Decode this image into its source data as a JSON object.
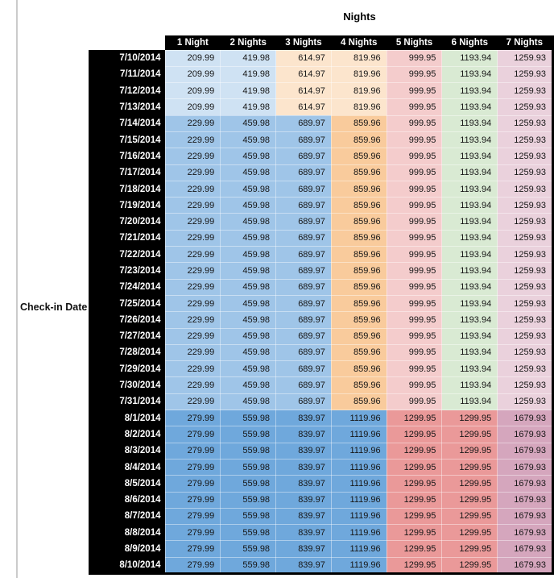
{
  "title": "Nights",
  "row_axis_label": "Check-in Date",
  "columns": [
    "1 Night",
    "2 Nights",
    "3 Nights",
    "4 Nights",
    "5 Nights",
    "6 Nights",
    "7 Nights"
  ],
  "header_colors": {
    "background": "#000000",
    "text": "#ffffff"
  },
  "sections": [
    {
      "name": "early-july-rate",
      "dates": [
        "7/10/2014",
        "7/11/2014",
        "7/12/2014",
        "7/13/2014"
      ],
      "values": [
        "209.99",
        "419.98",
        "614.97",
        "819.96",
        "999.95",
        "1193.94",
        "1259.93"
      ],
      "cell_colors": [
        "#cfe2f3",
        "#cfe2f3",
        "#fce5cd",
        "#fce5cd",
        "#f4cccc",
        "#d9ead3",
        "#ead1dc"
      ]
    },
    {
      "name": "mid-july-rate",
      "dates": [
        "7/14/2014",
        "7/15/2014",
        "7/16/2014",
        "7/17/2014",
        "7/18/2014",
        "7/19/2014",
        "7/20/2014",
        "7/21/2014",
        "7/22/2014",
        "7/23/2014",
        "7/24/2014",
        "7/25/2014",
        "7/26/2014",
        "7/27/2014",
        "7/28/2014",
        "7/29/2014",
        "7/30/2014",
        "7/31/2014"
      ],
      "values": [
        "229.99",
        "459.98",
        "689.97",
        "859.96",
        "999.95",
        "1193.94",
        "1259.93"
      ],
      "cell_colors": [
        "#9fc5e8",
        "#9fc5e8",
        "#9fc5e8",
        "#f9cb9c",
        "#f4cccc",
        "#d9ead3",
        "#ead1dc"
      ]
    },
    {
      "name": "august-rate",
      "dates": [
        "8/1/2014",
        "8/2/2014",
        "8/3/2014",
        "8/4/2014",
        "8/5/2014",
        "8/6/2014",
        "8/7/2014",
        "8/8/2014",
        "8/9/2014",
        "8/10/2014"
      ],
      "values": [
        "279.99",
        "559.98",
        "839.97",
        "1119.96",
        "1299.95",
        "1299.95",
        "1679.93"
      ],
      "cell_colors": [
        "#6fa8dc",
        "#6fa8dc",
        "#6fa8dc",
        "#6fa8dc",
        "#ea9999",
        "#ea9999",
        "#d5a6bd"
      ]
    }
  ]
}
